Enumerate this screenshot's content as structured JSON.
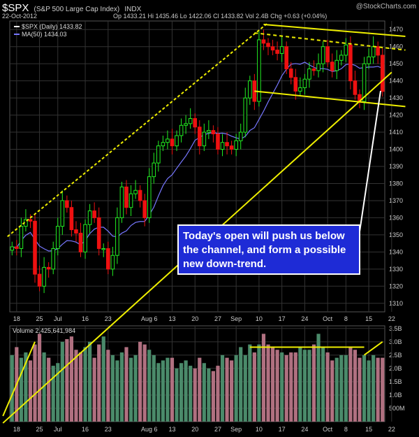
{
  "header": {
    "symbol": "$SPX",
    "name": "(S&P 500 Large Cap Index)",
    "exchange": "INDX",
    "date": "22-Oct-2012",
    "watermark": "@StockCharts.com",
    "ohlc_text": "Op 1433.21   Hi 1435.46   Lo 1422.06   Cl 1433.82   Vol 2.4B   Chg +0.63 (+0.04%)"
  },
  "annotation": "Today's open will push us below the channel, and form a possible new down-trend.",
  "colors": {
    "up": "#22ee22",
    "down": "#ee1111",
    "vol_up": "#4a8a6a",
    "vol_down": "#b07080",
    "trend": "#eeee00",
    "ma": "#7777ff",
    "grid": "#333333"
  },
  "chart_data": [
    {
      "type": "candlestick",
      "legend": [
        {
          "label": "$SPX (Daily) 1433.82",
          "color": "#ffffff"
        },
        {
          "label": "MA(50) 1434.03",
          "color": "#7777ff"
        }
      ],
      "ylim": [
        1305,
        1475
      ],
      "y_ticks": [
        1310,
        1320,
        1330,
        1340,
        1350,
        1360,
        1370,
        1380,
        1390,
        1400,
        1410,
        1420,
        1430,
        1440,
        1450,
        1460,
        1470
      ],
      "x_tick_labels": [
        {
          "i": 1,
          "t": "18"
        },
        {
          "i": 6,
          "t": "25"
        },
        {
          "i": 10,
          "t": "Jul"
        },
        {
          "i": 16,
          "t": "16"
        },
        {
          "i": 21,
          "t": "23"
        },
        {
          "i": 30,
          "t": "Aug 6"
        },
        {
          "i": 35,
          "t": "13"
        },
        {
          "i": 40,
          "t": "20"
        },
        {
          "i": 45,
          "t": "27"
        },
        {
          "i": 49,
          "t": "Sep"
        },
        {
          "i": 54,
          "t": "10"
        },
        {
          "i": 59,
          "t": "17"
        },
        {
          "i": 64,
          "t": "24"
        },
        {
          "i": 69,
          "t": "Oct"
        },
        {
          "i": 73,
          "t": "8"
        },
        {
          "i": 78,
          "t": "15"
        },
        {
          "i": 83,
          "t": "22"
        }
      ],
      "closes": [
        1343,
        1342,
        1355,
        1359,
        1358,
        1327,
        1320,
        1331,
        1330,
        1342,
        1355,
        1370,
        1366,
        1353,
        1351,
        1340,
        1356,
        1364,
        1360,
        1342,
        1342,
        1330,
        1338,
        1360,
        1378,
        1366,
        1374,
        1376,
        1370,
        1360,
        1384,
        1392,
        1402,
        1404,
        1406,
        1402,
        1408,
        1414,
        1415,
        1418,
        1413,
        1402,
        1410,
        1411,
        1409,
        1400,
        1404,
        1402,
        1400,
        1405,
        1410,
        1430,
        1440,
        1428,
        1464,
        1462,
        1460,
        1458,
        1456,
        1460,
        1447,
        1442,
        1434,
        1436,
        1441,
        1447,
        1446,
        1450,
        1460,
        1451,
        1446,
        1452,
        1455,
        1461,
        1440,
        1432,
        1428,
        1450,
        1454,
        1460,
        1455,
        1433.82
      ],
      "volume_series": [
        {
          "name": "Volume",
          "label": "Volume 2,425,641,984"
        }
      ],
      "volume_ylim": [
        0,
        3.6
      ],
      "volume_ticks": [
        {
          "v": 0.5,
          "t": "500M"
        },
        {
          "v": 1.0,
          "t": "1.0B"
        },
        {
          "v": 1.5,
          "t": "1.5B"
        },
        {
          "v": 2.0,
          "t": "2.0B"
        },
        {
          "v": 2.5,
          "t": "2.5B"
        },
        {
          "v": 3.0,
          "t": "3.0B"
        },
        {
          "v": 3.5,
          "t": "3.5B"
        }
      ],
      "volumes": [
        2.5,
        2.8,
        2.4,
        2.6,
        2.3,
        2.9,
        3.3,
        2.6,
        2.4,
        2.1,
        2.2,
        3.0,
        3.1,
        3.2,
        2.7,
        2.6,
        2.8,
        3.0,
        2.4,
        2.9,
        3.2,
        2.7,
        2.5,
        2.3,
        2.6,
        2.8,
        2.4,
        2.5,
        3.0,
        2.9,
        2.7,
        2.5,
        2.2,
        2.3,
        2.4,
        2.4,
        2.0,
        2.2,
        2.3,
        2.1,
        2.0,
        2.4,
        2.2,
        2.0,
        1.9,
        2.1,
        2.5,
        2.4,
        2.3,
        2.5,
        2.8,
        2.5,
        2.9,
        2.6,
        2.9,
        3.3,
        2.9,
        2.8,
        2.7,
        2.6,
        2.5,
        2.6,
        2.6,
        2.8,
        2.7,
        2.7,
        2.9,
        3.3,
        2.8,
        2.6,
        2.3,
        2.4,
        2.5,
        2.5,
        2.8,
        2.7,
        2.4,
        2.5,
        2.3,
        2.5,
        2.4,
        2.4
      ]
    }
  ]
}
